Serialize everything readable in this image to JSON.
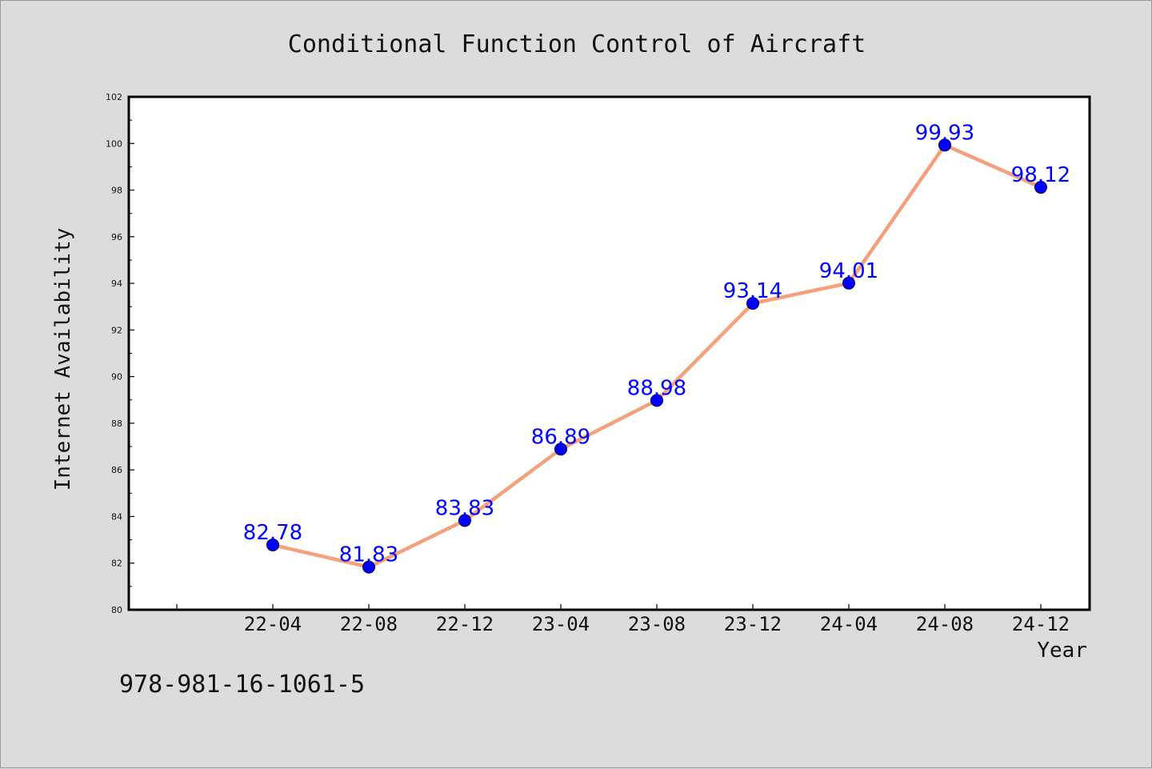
{
  "chart_data": {
    "type": "line",
    "title": "Conditional Function Control of Aircraft",
    "xlabel": "Year",
    "ylabel": "Internet Availability",
    "categories": [
      "22-04",
      "22-08",
      "22-12",
      "23-04",
      "23-08",
      "23-12",
      "24-04",
      "24-08",
      "24-12"
    ],
    "series": [
      {
        "values": [
          82.78,
          81.83,
          83.83,
          86.89,
          88.98,
          93.14,
          94.01,
          99.93,
          98.12
        ]
      }
    ],
    "ylim": [
      80,
      102
    ],
    "yticks": [
      80,
      82,
      84,
      86,
      88,
      90,
      92,
      94,
      96,
      98,
      100,
      102
    ],
    "ytick_labels": [
      "80",
      "82",
      "84",
      "86",
      "88",
      "90",
      "92",
      "94",
      "96",
      "98",
      "100",
      "102"
    ],
    "data_labels": [
      "82.78",
      "81.83",
      "83.83",
      "86.89",
      "88.98",
      "93.14",
      "94.01",
      "99.93",
      "98.12"
    ],
    "grid": false,
    "colors": {
      "line": "#f4a07c",
      "marker": "#0000ff",
      "label": "#0000ff",
      "background": "#dcdcdc",
      "plot_background": "#ffffff"
    }
  },
  "footer_text": "978-981-16-1061-5"
}
